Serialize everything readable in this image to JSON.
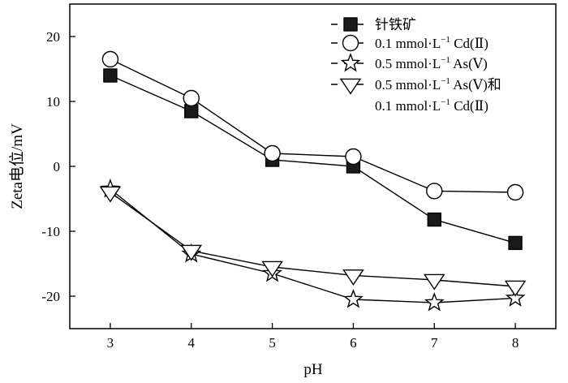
{
  "chart_data": {
    "type": "line",
    "xlabel": "pH",
    "ylabel": "Zeta电位/mV",
    "x": [
      3,
      4,
      5,
      6,
      7,
      8
    ],
    "xlim": [
      2.5,
      8.5
    ],
    "ylim": [
      -25,
      25
    ],
    "xticks": [
      "3",
      "4",
      "5",
      "6",
      "7",
      "8"
    ],
    "yticks": [
      "20",
      "10",
      "0",
      "-10",
      "-20"
    ],
    "ytick_values": [
      20,
      10,
      0,
      -10,
      -20
    ],
    "grid": false,
    "legend_position": "top-right",
    "series": [
      {
        "name": "针铁矿",
        "marker": "filled-square",
        "values": [
          14.0,
          8.5,
          1.0,
          0.0,
          -8.2,
          -11.8
        ]
      },
      {
        "name": "0.1 mmol·L⁻¹ Cd(Ⅱ)",
        "marker": "open-circle",
        "values": [
          16.5,
          10.5,
          2.0,
          1.5,
          -3.8,
          -4.0
        ]
      },
      {
        "name": "0.5 mmol·L⁻¹ As(Ⅴ)",
        "marker": "open-star",
        "values": [
          -3.5,
          -13.5,
          -16.5,
          -20.5,
          -21.0,
          -20.3
        ]
      },
      {
        "name": "0.5 mmol·L⁻¹ As(Ⅴ)和 0.1 mmol·L⁻¹ Cd(Ⅱ)",
        "marker": "open-triangle-down",
        "values": [
          -4.0,
          -13.0,
          -15.5,
          -16.8,
          -17.5,
          -18.5
        ]
      }
    ]
  },
  "legend": {
    "entries": [
      {
        "main": "针铁矿"
      },
      {
        "main": "0.1 mmol·L",
        "sup": "−1",
        "tail": " Cd(Ⅱ)"
      },
      {
        "main": "0.5 mmol·L",
        "sup": "−1",
        "tail": " As(Ⅴ)"
      },
      {
        "main": "0.5 mmol·L",
        "sup": "−1",
        "tail": " As(Ⅴ)和",
        "line2": "0.1 mmol·L",
        "line2_sup": "−1",
        "line2_tail": " Cd(Ⅱ)"
      }
    ]
  }
}
